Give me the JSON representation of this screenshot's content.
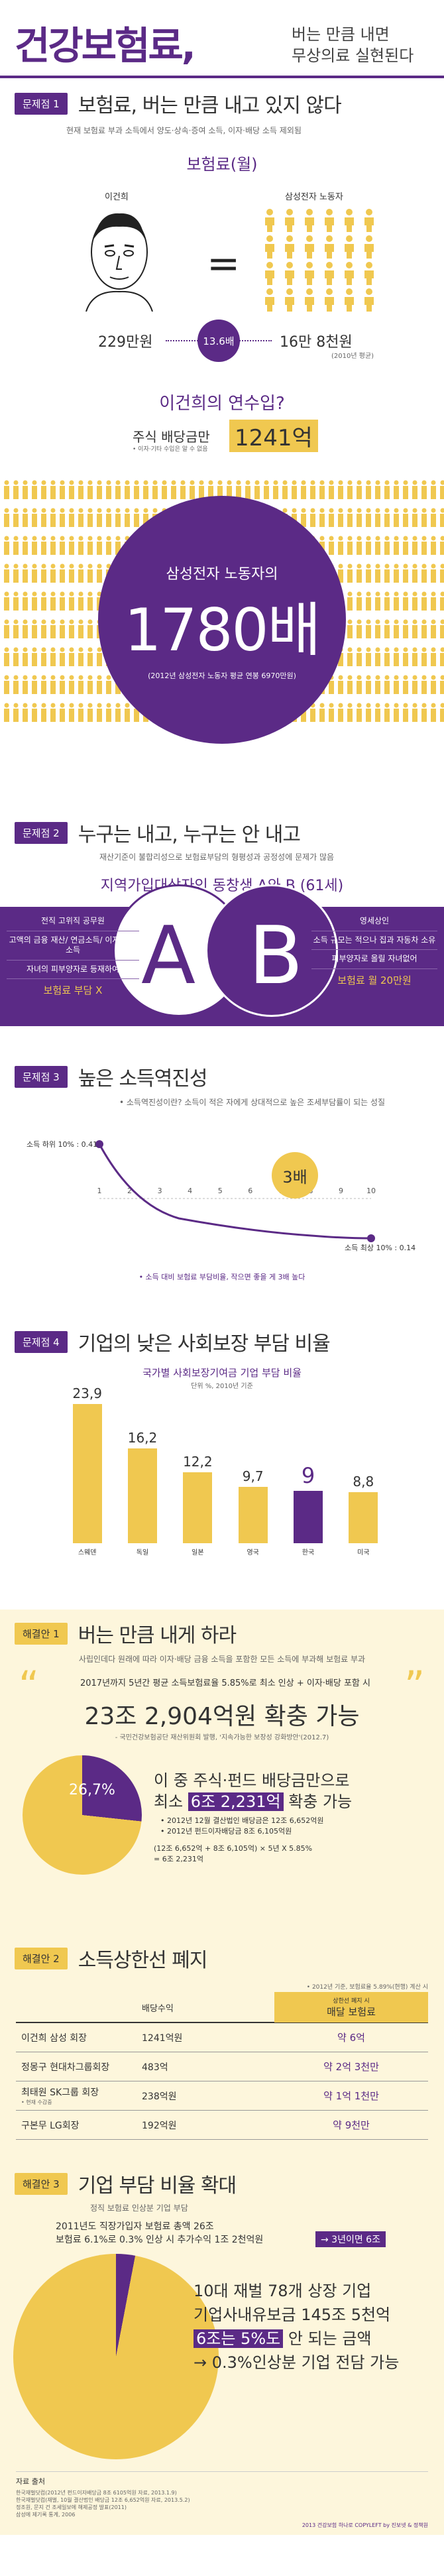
{
  "header": {
    "title": "건강보험료,",
    "subtitle_line1": "버는 만큼 내면",
    "subtitle_line2": "무상의료 실현된다"
  },
  "problem1": {
    "tag": "문제점 1",
    "title": "보험료, 버는 만큼 내고 있지 않다",
    "desc": "현재 보험료 부과 소득에서 양도·상속·증여 소득, 이자·배당 소득 제외됨",
    "section_label": "보험료(월)",
    "left_name": "이건희",
    "right_name": "삼성전자 노동자",
    "left_value": "229만원",
    "ratio": "13.6배",
    "right_value": "16만 8천원",
    "right_note": "(2010년 평균)",
    "question": "이건희의 연수입?",
    "dividend_label": "주식 배당금만",
    "dividend_note": "• 이자·기타 수입은 알 수 없음",
    "dividend_value": "1241억",
    "compare_label": "삼성전자 노동자의",
    "compare_value": "1780배",
    "compare_note": "(2012년 삼성전자 노동자 평균 연봉 6970만원)"
  },
  "problem2": {
    "tag": "문제점 2",
    "title": "누구는 내고, 누구는 안 내고",
    "desc": "재산기준이 불합리성으로 보험료부담의 형평성과 공정성에 문제가 많음",
    "subtitle": "지역가입대상자인 동창생 A와 B (61세)",
    "a_items": [
      "전직 고위직 공무원",
      "고액의 금융 재산/ 연금소득/ 이자·배당 소득",
      "자녀의 피부양자로 등재하여"
    ],
    "a_fee": "보험료 부담 X",
    "b_items": [
      "영세상인",
      "소득 규모는 적으나 집과 자동차 소유",
      "피부양자로 올릴 자녀없어"
    ],
    "b_fee": "보험료 월 20만원"
  },
  "problem3": {
    "tag": "문제점 3",
    "title": "높은 소득역진성",
    "desc": "• 소득역진성이란? 소득이 적은 자에게 상대적으로 높은 조세부담률이 되는 성질",
    "left_label": "소득 하위 10% : 0.41",
    "right_label": "소득 최상 10% : 0.14",
    "multiplier": "3배",
    "note": "• 소득 대비 보험료 부담비율, 작으면 좋을 게 3배 높다"
  },
  "problem4": {
    "tag": "문제점 4",
    "title": "기업의 낮은 사회보장 부담 비율",
    "chart_title": "국가별 사회보장기여금 기업 부담 비율",
    "chart_source": "단위 %, 2010년 기준"
  },
  "chart_data": {
    "type": "bar",
    "title": "국가별 사회보장기여금 기업 부담 비율",
    "categories": [
      "스웨덴",
      "독일",
      "일본",
      "영국",
      "한국",
      "미국"
    ],
    "values": [
      23.9,
      16.2,
      12.2,
      9.7,
      9,
      8.8
    ],
    "highlight": "한국",
    "ylim": [
      0,
      25
    ],
    "colors": {
      "normal": "#f0c850",
      "highlight": "#5b2a86"
    }
  },
  "solution1": {
    "tag": "해결안 1",
    "title": "버는 만큼 내게 하라",
    "desc": "사립인데다 원래에 따라 이자·배당 금융 소득을 포함한 모든 소득에 부과해 보험료 부과",
    "quote": "2017년까지 5년간 평균 소득보험료율 5.85%로 최소 인상 + 이자·배당 포함 시",
    "big_value": "23조 2,904억원 확충 가능",
    "big_source": "- 국민건강보험공단 재산위원회 발행, '지속가능한 보장성 강화방안'(2012.7)",
    "pie_pct": "26,7%",
    "claim_line1": "이 중 주식·펀드 배당금만으로",
    "claim_line2": "최소 6조 2,231억 확충 가능",
    "claim_highlight": "6조 2,231억",
    "detail1": "• 2012년 12월 결산법인 배당금은 12조 6,652억원",
    "detail2": "• 2012년 펀드이자배당금 8조 6,105억원",
    "calc1": "(12조 6,652억 + 8조 6,105억) × 5년 X 5.85%",
    "calc2": "= 6조 2,231억"
  },
  "solution2": {
    "tag": "해결안 2",
    "title": "소득상한선 폐지",
    "table_note": "• 2012년 기준, 보험료율 5.89%(현행) 계산 시",
    "col_income": "배당수익",
    "col_fee_note": "상한선 폐지 시",
    "col_fee": "매달 보험료",
    "rows": [
      {
        "name": "이건희 삼성 회장",
        "income": "1241억원",
        "fee": "약 6억"
      },
      {
        "name": "정몽구 현대차그룹회장",
        "income": "483억",
        "fee": "약 2억 3천만"
      },
      {
        "name": "최태원 SK그룹 회장",
        "name_note": "• 현재 수감중",
        "income": "238억원",
        "fee": "약 1억 1천만"
      },
      {
        "name": "구본무 LG회장",
        "income": "192억원",
        "fee": "약 9천만"
      }
    ]
  },
  "solution3": {
    "tag": "해결안 3",
    "title": "기업 부담 비율 확대",
    "desc": "정직 보험료 인상분 기업 부담",
    "line1": "2011년도 직장가입자 보험료 총액 26조",
    "line2": "보험료 6.1%로 0.3% 인상 시 추가수익 1조 2천억원",
    "arrow_value": "→ 3년이면 6조",
    "point1": "10대 재벌 78개 상장 기업",
    "point2": "기업사내유보금 145조 5천억",
    "point3": "6조는 5%도 안 되는 금액",
    "point3_highlight": "6조는 5%도",
    "point4": "→ 0.3%인상분 기업 전담 가능"
  },
  "footer": {
    "sources_title": "자료 출처",
    "sources": [
      "한국재벌닷컴(2012년 펀드이자배당금 8조 6105억원 자료, 2013.1.9)",
      "한국재벌닷컴(재벌, 10월 결산법인 배당금 12조 6,652억원 자료, 2013.5.2)",
      "정조원, 문지 건 조세일보에 해제공정 발표(2011)",
      "삼성에 제기록 통계, 2006"
    ],
    "copyright": "2013 건강보험 하나로 COPYLEFT  by 진보넷 & 정책원"
  },
  "colors": {
    "purple": "#5b2a86",
    "yellow": "#f0c850",
    "lightyellow": "#fbe9a8"
  }
}
